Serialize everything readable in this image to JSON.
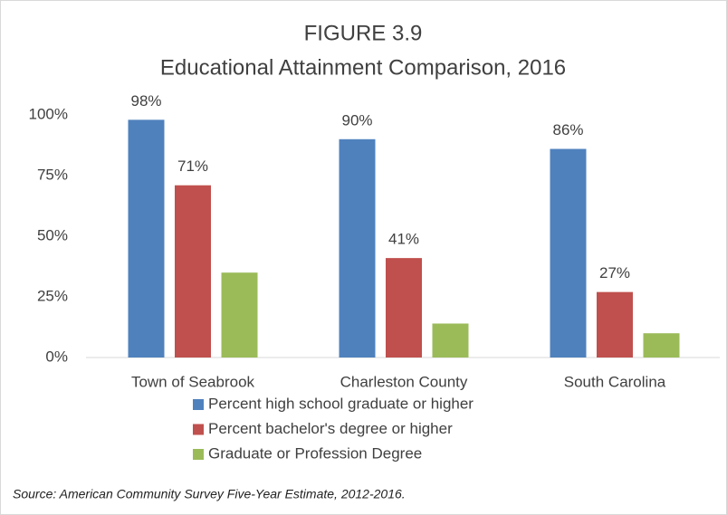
{
  "chart_data": {
    "type": "bar",
    "title": "FIGURE 3.9",
    "subtitle": "Educational Attainment Comparison, 2016",
    "categories": [
      "Town of Seabrook",
      "Charleston County",
      "South Carolina"
    ],
    "series": [
      {
        "name": "Percent high school graduate or higher",
        "color": "#4f81bd",
        "values": [
          98,
          90,
          86
        ],
        "value_labels": [
          "98%",
          "90%",
          "86%"
        ]
      },
      {
        "name": "Percent bachelor's degree or higher",
        "color": "#c0504d",
        "values": [
          71,
          41,
          27
        ],
        "value_labels": [
          "71%",
          "41%",
          "27%"
        ]
      },
      {
        "name": "Graduate or Profession Degree",
        "color": "#9bbb59",
        "values": [
          35,
          14,
          10
        ]
      }
    ],
    "ylim": [
      0,
      100
    ],
    "yticks": [
      {
        "value": 0,
        "label": "0%"
      },
      {
        "value": 25,
        "label": "25%"
      },
      {
        "value": 50,
        "label": "50%"
      },
      {
        "value": 75,
        "label": "75%"
      },
      {
        "value": 100,
        "label": "100%"
      }
    ],
    "grid": false,
    "legend": "bottom",
    "source": "Source: American Community Survey Five-Year Estimate, 2012-2016."
  }
}
